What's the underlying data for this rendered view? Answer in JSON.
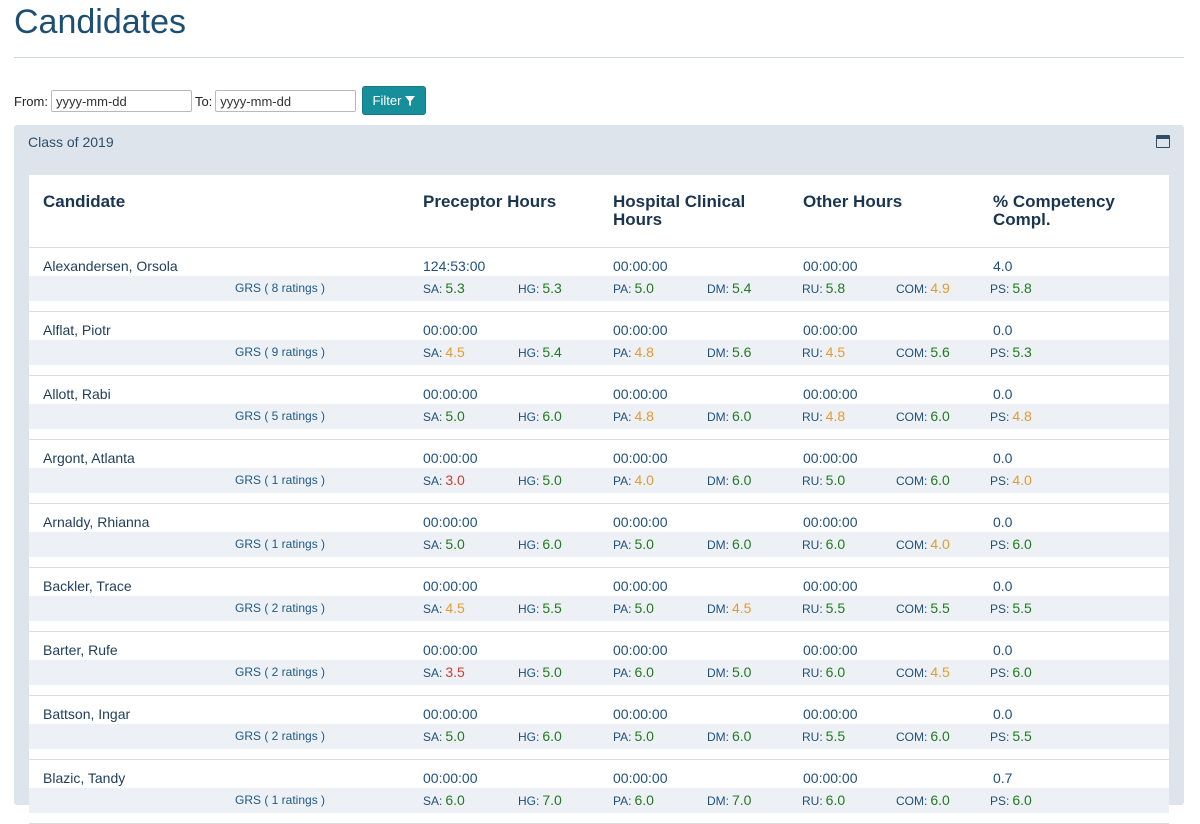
{
  "page": {
    "title": "Candidates"
  },
  "filter": {
    "from_label": "From:",
    "from_placeholder": "yyyy-mm-dd",
    "to_label": "To:",
    "to_placeholder": "yyyy-mm-dd",
    "button_label": "Filter"
  },
  "panel": {
    "title": "Class of 2019"
  },
  "table": {
    "headers": [
      "Candidate",
      "Preceptor Hours",
      "Hospital Clinical\nHours",
      "Other Hours",
      "% Competency\nCompl."
    ],
    "metric_labels": [
      "SA:",
      "HG:",
      "PA:",
      "DM:",
      "RU:",
      "COM:",
      "PS:"
    ],
    "rows": [
      {
        "name": "Alexandersen, Orsola",
        "grs": "GRS ( 8 ratings )",
        "preceptor": "124:53:00",
        "hospital": "00:00:00",
        "other": "00:00:00",
        "competency": "4.0",
        "metrics": [
          [
            "5.3",
            "green"
          ],
          [
            "5.3",
            "green"
          ],
          [
            "5.0",
            "green"
          ],
          [
            "5.4",
            "green"
          ],
          [
            "5.8",
            "green"
          ],
          [
            "4.9",
            "orange"
          ],
          [
            "5.8",
            "green"
          ]
        ]
      },
      {
        "name": "Alflat, Piotr",
        "grs": "GRS ( 9 ratings )",
        "preceptor": "00:00:00",
        "hospital": "00:00:00",
        "other": "00:00:00",
        "competency": "0.0",
        "metrics": [
          [
            "4.5",
            "orange"
          ],
          [
            "5.4",
            "green"
          ],
          [
            "4.8",
            "orange"
          ],
          [
            "5.6",
            "green"
          ],
          [
            "4.5",
            "orange"
          ],
          [
            "5.6",
            "green"
          ],
          [
            "5.3",
            "green"
          ]
        ]
      },
      {
        "name": "Allott, Rabi",
        "grs": "GRS ( 5 ratings )",
        "preceptor": "00:00:00",
        "hospital": "00:00:00",
        "other": "00:00:00",
        "competency": "0.0",
        "metrics": [
          [
            "5.0",
            "green"
          ],
          [
            "6.0",
            "green"
          ],
          [
            "4.8",
            "orange"
          ],
          [
            "6.0",
            "green"
          ],
          [
            "4.8",
            "orange"
          ],
          [
            "6.0",
            "green"
          ],
          [
            "4.8",
            "orange"
          ]
        ]
      },
      {
        "name": "Argont, Atlanta",
        "grs": "GRS ( 1 ratings )",
        "preceptor": "00:00:00",
        "hospital": "00:00:00",
        "other": "00:00:00",
        "competency": "0.0",
        "metrics": [
          [
            "3.0",
            "red"
          ],
          [
            "5.0",
            "green"
          ],
          [
            "4.0",
            "orange"
          ],
          [
            "6.0",
            "green"
          ],
          [
            "5.0",
            "green"
          ],
          [
            "6.0",
            "green"
          ],
          [
            "4.0",
            "orange"
          ]
        ]
      },
      {
        "name": "Arnaldy, Rhianna",
        "grs": "GRS ( 1 ratings )",
        "preceptor": "00:00:00",
        "hospital": "00:00:00",
        "other": "00:00:00",
        "competency": "0.0",
        "metrics": [
          [
            "5.0",
            "green"
          ],
          [
            "6.0",
            "green"
          ],
          [
            "5.0",
            "green"
          ],
          [
            "6.0",
            "green"
          ],
          [
            "6.0",
            "green"
          ],
          [
            "4.0",
            "orange"
          ],
          [
            "6.0",
            "green"
          ]
        ]
      },
      {
        "name": "Backler, Trace",
        "grs": "GRS ( 2 ratings )",
        "preceptor": "00:00:00",
        "hospital": "00:00:00",
        "other": "00:00:00",
        "competency": "0.0",
        "metrics": [
          [
            "4.5",
            "orange"
          ],
          [
            "5.5",
            "green"
          ],
          [
            "5.0",
            "green"
          ],
          [
            "4.5",
            "orange"
          ],
          [
            "5.5",
            "green"
          ],
          [
            "5.5",
            "green"
          ],
          [
            "5.5",
            "green"
          ]
        ]
      },
      {
        "name": "Barter, Rufe",
        "grs": "GRS ( 2 ratings )",
        "preceptor": "00:00:00",
        "hospital": "00:00:00",
        "other": "00:00:00",
        "competency": "0.0",
        "metrics": [
          [
            "3.5",
            "red"
          ],
          [
            "5.0",
            "green"
          ],
          [
            "6.0",
            "green"
          ],
          [
            "5.0",
            "green"
          ],
          [
            "6.0",
            "green"
          ],
          [
            "4.5",
            "orange"
          ],
          [
            "6.0",
            "green"
          ]
        ]
      },
      {
        "name": "Battson, Ingar",
        "grs": "GRS ( 2 ratings )",
        "preceptor": "00:00:00",
        "hospital": "00:00:00",
        "other": "00:00:00",
        "competency": "0.0",
        "metrics": [
          [
            "5.0",
            "green"
          ],
          [
            "6.0",
            "green"
          ],
          [
            "5.0",
            "green"
          ],
          [
            "6.0",
            "green"
          ],
          [
            "5.5",
            "green"
          ],
          [
            "6.0",
            "green"
          ],
          [
            "5.5",
            "green"
          ]
        ]
      },
      {
        "name": "Blazic, Tandy",
        "grs": "GRS ( 1 ratings )",
        "preceptor": "00:00:00",
        "hospital": "00:00:00",
        "other": "00:00:00",
        "competency": "0.7",
        "metrics": [
          [
            "6.0",
            "green"
          ],
          [
            "7.0",
            "green"
          ],
          [
            "6.0",
            "green"
          ],
          [
            "7.0",
            "green"
          ],
          [
            "6.0",
            "green"
          ],
          [
            "6.0",
            "green"
          ],
          [
            "6.0",
            "green"
          ]
        ]
      }
    ]
  },
  "colors": {
    "accent": "#178f9a",
    "green": "#207a1f",
    "orange": "#e59a2e",
    "red": "#d33a2e"
  },
  "icons": {
    "filter": "filter-funnel-icon",
    "panel": "window-toggle-icon"
  }
}
